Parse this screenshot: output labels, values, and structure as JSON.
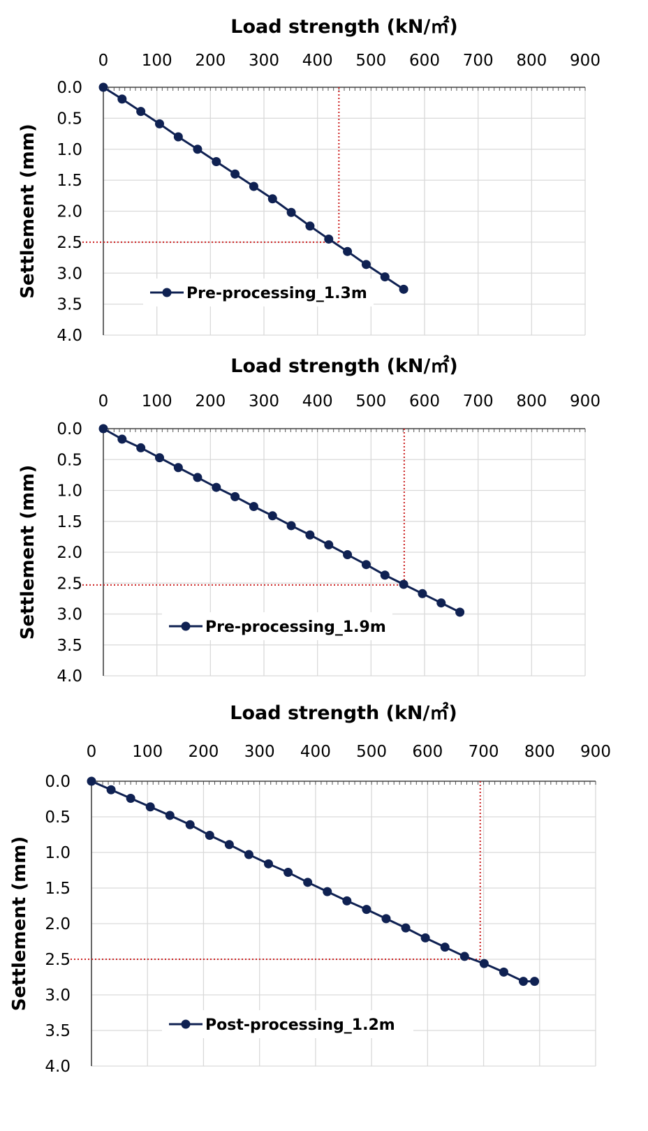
{
  "chart_data": [
    {
      "type": "line",
      "xlabel": "Load strength (kN/㎡)",
      "ylabel": "Settlement (mm)",
      "xlim": [
        0,
        900
      ],
      "ylim": [
        0,
        4.0
      ],
      "y_inverted": true,
      "x_axis_position": "top",
      "x_ticks": [
        "0",
        "100",
        "200",
        "300",
        "400",
        "500",
        "600",
        "700",
        "800",
        "900"
      ],
      "y_ticks": [
        "0.0",
        "0.5",
        "1.0",
        "1.5",
        "2.0",
        "2.5",
        "3.0",
        "3.5",
        "4.0"
      ],
      "grid": true,
      "legend_position": "bottom-left",
      "series": [
        {
          "name": "Pre-processing_1.3m",
          "color": "#0f2152",
          "x": [
            0,
            35,
            70,
            105,
            140,
            176,
            211,
            246,
            281,
            316,
            351,
            386,
            421,
            456,
            491,
            526,
            561
          ],
          "y": [
            0,
            0.19,
            0.39,
            0.59,
            0.8,
            1.0,
            1.2,
            1.4,
            1.6,
            1.8,
            2.02,
            2.24,
            2.45,
            2.65,
            2.86,
            3.06,
            3.26
          ]
        }
      ],
      "reference": {
        "x": 440,
        "y": 2.5,
        "color": "#cc1f1f"
      }
    },
    {
      "type": "line",
      "xlabel": "Load strength (kN/㎡)",
      "ylabel": "Settlement (mm)",
      "xlim": [
        0,
        900
      ],
      "ylim": [
        0,
        4.0
      ],
      "y_inverted": true,
      "x_axis_position": "top",
      "x_ticks": [
        "0",
        "100",
        "200",
        "300",
        "400",
        "500",
        "600",
        "700",
        "800",
        "900"
      ],
      "y_ticks": [
        "0.0",
        "0.5",
        "1.0",
        "1.5",
        "2.0",
        "2.5",
        "3.0",
        "3.5",
        "4.0"
      ],
      "grid": true,
      "legend_position": "bottom-left",
      "series": [
        {
          "name": "Pre-processing_1.9m",
          "color": "#0f2152",
          "x": [
            0,
            35,
            70,
            105,
            140,
            176,
            211,
            246,
            281,
            316,
            351,
            386,
            421,
            456,
            491,
            526,
            561,
            596,
            631,
            666
          ],
          "y": [
            0,
            0.17,
            0.31,
            0.47,
            0.63,
            0.79,
            0.95,
            1.1,
            1.26,
            1.41,
            1.57,
            1.72,
            1.88,
            2.04,
            2.2,
            2.37,
            2.52,
            2.67,
            2.82,
            2.97
          ]
        }
      ],
      "reference": {
        "x": 562,
        "y": 2.53,
        "color": "#cc1f1f"
      }
    },
    {
      "type": "line",
      "xlabel": "Load strength (kN/㎡)",
      "ylabel": "Settlement (mm)",
      "xlim": [
        0,
        900
      ],
      "ylim": [
        0,
        4.0
      ],
      "y_inverted": true,
      "x_axis_position": "top",
      "x_ticks": [
        "0",
        "100",
        "200",
        "300",
        "400",
        "500",
        "600",
        "700",
        "800",
        "900"
      ],
      "y_ticks": [
        "0.0",
        "0.5",
        "1.0",
        "1.5",
        "2.0",
        "2.5",
        "3.0",
        "3.5",
        "4.0"
      ],
      "grid": true,
      "legend_position": "bottom-left",
      "series": [
        {
          "name": "Post-processing_1.2m",
          "color": "#0f2152",
          "x": [
            0,
            35,
            70,
            105,
            140,
            176,
            211,
            246,
            281,
            316,
            351,
            386,
            421,
            456,
            491,
            526,
            561,
            596,
            631,
            666,
            701,
            736,
            771,
            791
          ],
          "y": [
            0,
            0.12,
            0.24,
            0.36,
            0.48,
            0.61,
            0.76,
            0.89,
            1.03,
            1.16,
            1.28,
            1.42,
            1.55,
            1.68,
            1.8,
            1.93,
            2.06,
            2.2,
            2.33,
            2.46,
            2.56,
            2.68,
            2.81,
            2.81
          ]
        }
      ],
      "reference": {
        "x": 694,
        "y": 2.5,
        "color": "#cc1f1f"
      }
    }
  ]
}
